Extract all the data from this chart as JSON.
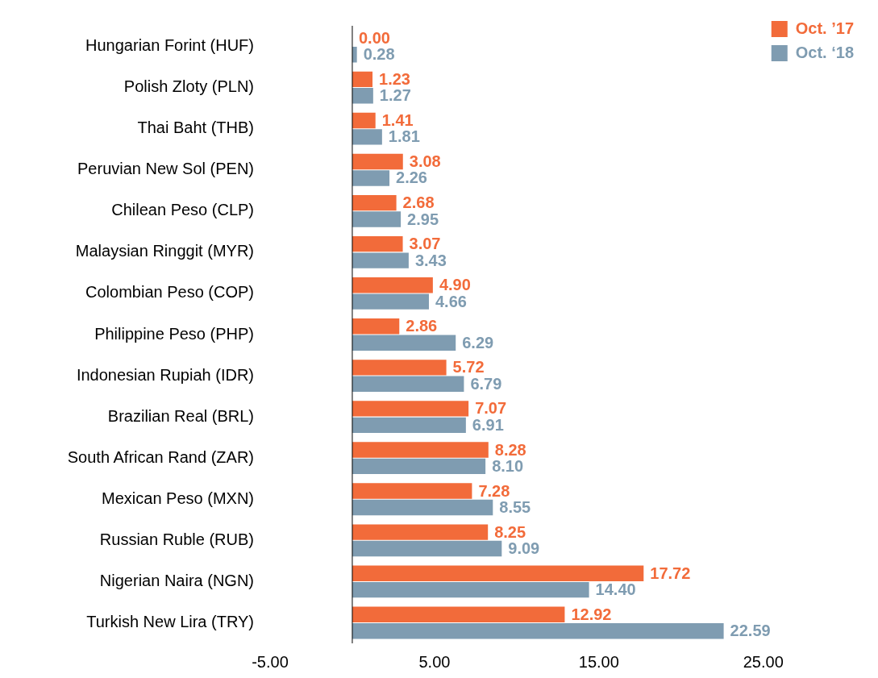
{
  "chart_data": {
    "type": "bar",
    "orientation": "horizontal",
    "categories": [
      "Hungarian Forint (HUF)",
      "Polish Zloty (PLN)",
      "Thai Baht (THB)",
      "Peruvian New Sol (PEN)",
      "Chilean Peso (CLP)",
      "Malaysian Ringgit (MYR)",
      "Colombian Peso (COP)",
      "Philippine Peso (PHP)",
      "Indonesian Rupiah (IDR)",
      "Brazilian Real (BRL)",
      "South African Rand (ZAR)",
      "Mexican Peso (MXN)",
      "Russian Ruble (RUB)",
      "Nigerian Naira (NGN)",
      "Turkish New Lira (TRY)"
    ],
    "series": [
      {
        "name": "Oct. ’17",
        "color": "#f26b3a",
        "values": [
          0,
          1.23,
          1.41,
          3.08,
          2.68,
          3.07,
          4.9,
          2.86,
          5.72,
          7.07,
          8.28,
          7.28,
          8.25,
          17.72,
          12.92
        ],
        "value_labels": [
          "0.00",
          "1.23",
          "1.41",
          "3.08",
          "2.68",
          "3.07",
          "4.90",
          "2.86",
          "5.72",
          "7.07",
          "8.28",
          "7.28",
          "8.25",
          "17.72",
          "12.92"
        ]
      },
      {
        "name": "Oct. ‘18",
        "color": "#7f9cb1",
        "values": [
          0.28,
          1.27,
          1.81,
          2.26,
          2.95,
          3.43,
          4.66,
          6.29,
          6.79,
          6.91,
          8.1,
          8.55,
          9.09,
          14.4,
          22.59
        ],
        "value_labels": [
          "0.28",
          "1.27",
          "1.81",
          "2.26",
          "2.95",
          "3.43",
          "4.66",
          "6.29",
          "6.79",
          "6.91",
          "8.10",
          "8.55",
          "9.09",
          "14.40",
          "22.59"
        ]
      }
    ],
    "xlim": [
      -5,
      25
    ],
    "xticks": [
      {
        "value": -5,
        "label": "-5.00"
      },
      {
        "value": 5,
        "label": "5.00"
      },
      {
        "value": 15,
        "label": "15.00"
      },
      {
        "value": 25,
        "label": "25.00"
      }
    ],
    "grid": false,
    "legend": "top right"
  }
}
